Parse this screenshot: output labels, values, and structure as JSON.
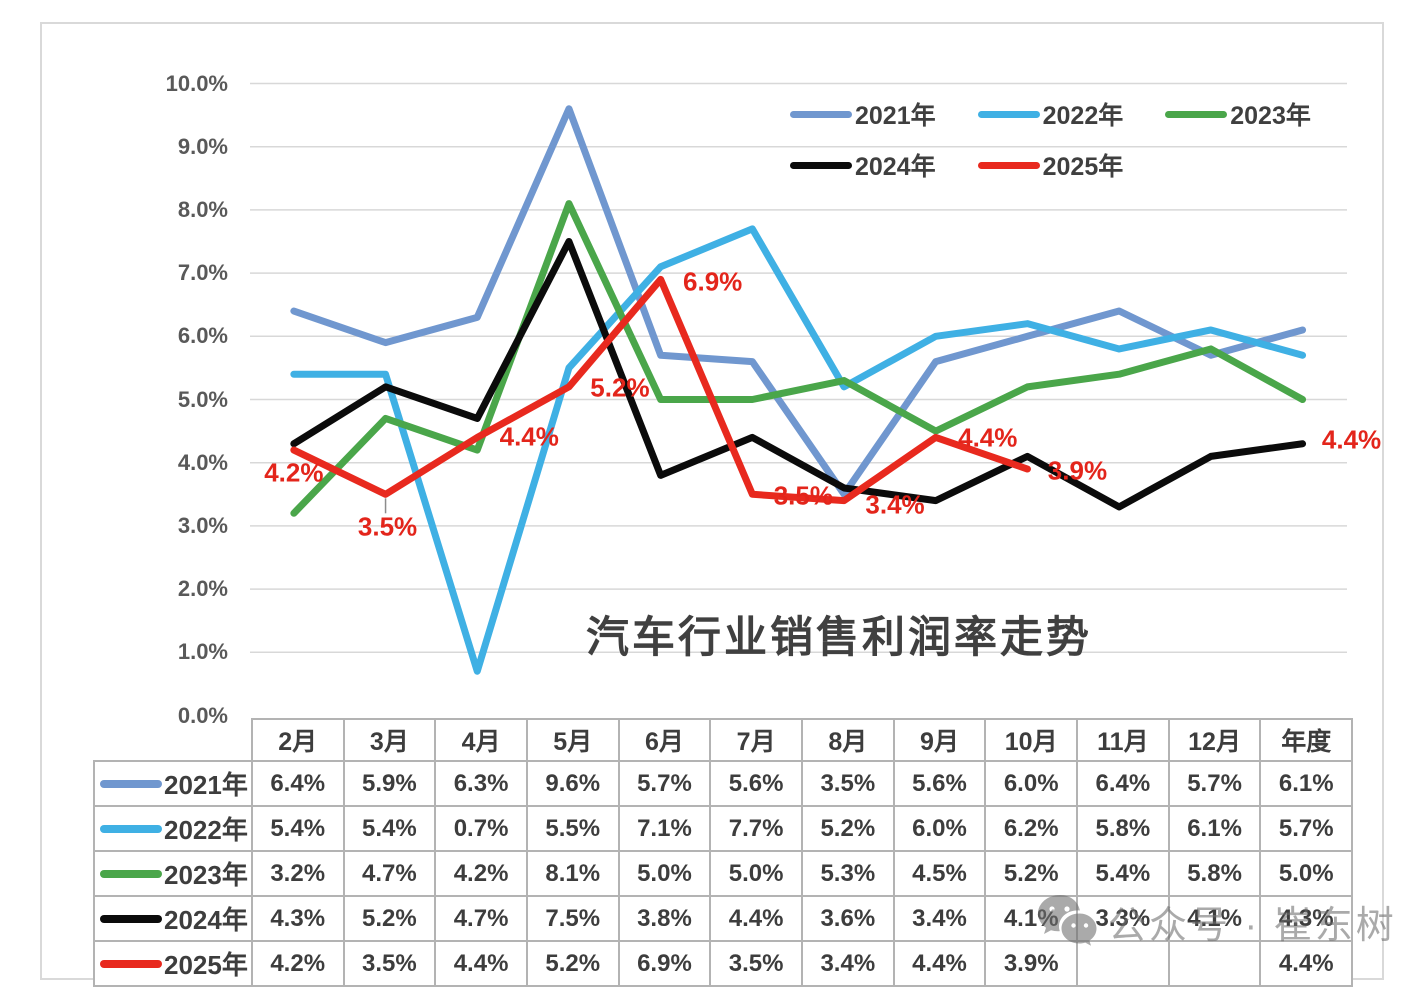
{
  "chart_data": {
    "type": "line",
    "title": "汽车行业销售利润率走势",
    "categories": [
      "2月",
      "3月",
      "4月",
      "5月",
      "6月",
      "7月",
      "8月",
      "9月",
      "10月",
      "11月",
      "12月",
      "年度"
    ],
    "series": [
      {
        "name": "2021年",
        "color": "#7097cf",
        "values": [
          6.4,
          5.9,
          6.3,
          9.6,
          5.7,
          5.6,
          3.5,
          5.6,
          6.0,
          6.4,
          5.7,
          6.1
        ]
      },
      {
        "name": "2022年",
        "color": "#3fb0e4",
        "values": [
          5.4,
          5.4,
          0.7,
          5.5,
          7.1,
          7.7,
          5.2,
          6.0,
          6.2,
          5.8,
          6.1,
          5.7
        ]
      },
      {
        "name": "2023年",
        "color": "#4aa64a",
        "values": [
          3.2,
          4.7,
          4.2,
          8.1,
          5.0,
          5.0,
          5.3,
          4.5,
          5.2,
          5.4,
          5.8,
          5.0
        ]
      },
      {
        "name": "2024年",
        "color": "#0b0b0b",
        "values": [
          4.3,
          5.2,
          4.7,
          7.5,
          3.8,
          4.4,
          3.6,
          3.4,
          4.1,
          3.3,
          4.1,
          4.3
        ]
      },
      {
        "name": "2025年",
        "color": "#e8291e",
        "values": [
          4.2,
          3.5,
          4.4,
          5.2,
          6.9,
          3.5,
          3.4,
          4.4,
          3.9,
          null,
          null,
          4.4
        ]
      }
    ],
    "ylim": [
      0,
      10
    ],
    "y_ticks": [
      {
        "v": 0,
        "label": "0.0%"
      },
      {
        "v": 1,
        "label": "1.0%"
      },
      {
        "v": 2,
        "label": "2.0%"
      },
      {
        "v": 3,
        "label": "3.0%"
      },
      {
        "v": 4,
        "label": "4.0%"
      },
      {
        "v": 5,
        "label": "5.0%"
      },
      {
        "v": 6,
        "label": "6.0%"
      },
      {
        "v": 7,
        "label": "7.0%"
      },
      {
        "v": 8,
        "label": "8.0%"
      },
      {
        "v": 9,
        "label": "9.0%"
      },
      {
        "v": 10,
        "label": "10.0%"
      }
    ],
    "grid": "horizontal",
    "legend_position": "top-right-inside",
    "legend_rows": [
      [
        "2021年",
        "2022年",
        "2023年"
      ],
      [
        "2024年",
        "2025年"
      ]
    ],
    "annotations": [
      {
        "series": "2025年",
        "text": "4.2%",
        "i": 0,
        "v": 4.2,
        "ox": 0,
        "oy": 23
      },
      {
        "series": "2025年",
        "text": "3.5%",
        "i": 1,
        "v": 3.5,
        "ox": 2,
        "oy": 33,
        "leader": true
      },
      {
        "series": "2025年",
        "text": "4.4%",
        "i": 2,
        "v": 4.4,
        "ox": 52,
        "oy": 0
      },
      {
        "series": "2025年",
        "text": "5.2%",
        "i": 3,
        "v": 5.2,
        "ox": 51,
        "oy": 1
      },
      {
        "series": "2025年",
        "text": "6.9%",
        "i": 4,
        "v": 6.9,
        "ox": 52,
        "oy": 3
      },
      {
        "series": "2025年",
        "text": "3.5%",
        "i": 5,
        "v": 3.5,
        "ox": 51,
        "oy": 2
      },
      {
        "series": "2025年",
        "text": "3.4%",
        "i": 6,
        "v": 3.4,
        "ox": 51,
        "oy": 4
      },
      {
        "series": "2025年",
        "text": "4.4%",
        "i": 7,
        "v": 4.4,
        "ox": 52,
        "oy": 1
      },
      {
        "series": "2025年",
        "text": "3.9%",
        "i": 8,
        "v": 3.9,
        "ox": 50,
        "oy": 2
      },
      {
        "series": "2025年",
        "text": "4.4%",
        "i": 11,
        "v": 4.4,
        "ox": 49,
        "oy": 3
      }
    ],
    "colors": {
      "gridline": "#d8d8d8",
      "axis_text": "#595959",
      "annotation_red": "#e3251b"
    }
  },
  "table": {
    "col_headers": [
      "2月",
      "3月",
      "4月",
      "5月",
      "6月",
      "7月",
      "8月",
      "9月",
      "10月",
      "11月",
      "12月",
      "年度"
    ],
    "rows": [
      {
        "label": "2021年",
        "color": "#7097cf",
        "cells": [
          "6.4%",
          "5.9%",
          "6.3%",
          "9.6%",
          "5.7%",
          "5.6%",
          "3.5%",
          "5.6%",
          "6.0%",
          "6.4%",
          "5.7%",
          "6.1%"
        ]
      },
      {
        "label": "2022年",
        "color": "#3fb0e4",
        "cells": [
          "5.4%",
          "5.4%",
          "0.7%",
          "5.5%",
          "7.1%",
          "7.7%",
          "5.2%",
          "6.0%",
          "6.2%",
          "5.8%",
          "6.1%",
          "5.7%"
        ]
      },
      {
        "label": "2023年",
        "color": "#4aa64a",
        "cells": [
          "3.2%",
          "4.7%",
          "4.2%",
          "8.1%",
          "5.0%",
          "5.0%",
          "5.3%",
          "4.5%",
          "5.2%",
          "5.4%",
          "5.8%",
          "5.0%"
        ]
      },
      {
        "label": "2024年",
        "color": "#0b0b0b",
        "cells": [
          "4.3%",
          "5.2%",
          "4.7%",
          "7.5%",
          "3.8%",
          "4.4%",
          "3.6%",
          "3.4%",
          "4.1%",
          "3.3%",
          "4.1%",
          "4.3%"
        ]
      },
      {
        "label": "2025年",
        "color": "#e8291e",
        "cells": [
          "4.2%",
          "3.5%",
          "4.4%",
          "5.2%",
          "6.9%",
          "3.5%",
          "3.4%",
          "4.4%",
          "3.9%",
          "",
          "",
          "4.4%"
        ]
      }
    ]
  },
  "watermark": {
    "icon": "wechat-icon",
    "text": "公众号 · 崔东树"
  }
}
